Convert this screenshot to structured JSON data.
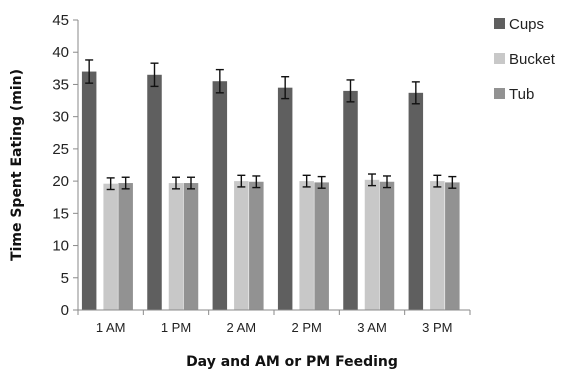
{
  "chart_data": {
    "type": "bar",
    "xlabel": "Day and AM or PM Feeding",
    "ylabel": "Time Spent Eating (min)",
    "ylim": [
      0,
      45
    ],
    "yticks": [
      0,
      5,
      10,
      15,
      20,
      25,
      30,
      35,
      40,
      45
    ],
    "grid": false,
    "legend_position": "right",
    "categories": [
      "1 AM",
      "1 PM",
      "2 AM",
      "2 PM",
      "3 AM",
      "3 PM"
    ],
    "series": [
      {
        "name": "Cups",
        "color": "#5f5f5f",
        "values": [
          37.0,
          36.5,
          35.5,
          34.5,
          34.0,
          33.7
        ],
        "errors": [
          1.8,
          1.8,
          1.8,
          1.7,
          1.7,
          1.7
        ]
      },
      {
        "name": "Bucket",
        "color": "#c8c8c8",
        "values": [
          19.6,
          19.7,
          20.0,
          20.0,
          20.2,
          20.0
        ],
        "errors": [
          0.9,
          0.9,
          0.9,
          0.9,
          0.9,
          0.9
        ]
      },
      {
        "name": "Tub",
        "color": "#929292",
        "values": [
          19.7,
          19.7,
          19.9,
          19.8,
          19.9,
          19.8
        ],
        "errors": [
          0.9,
          0.9,
          0.9,
          0.9,
          0.9,
          0.9
        ]
      }
    ]
  }
}
